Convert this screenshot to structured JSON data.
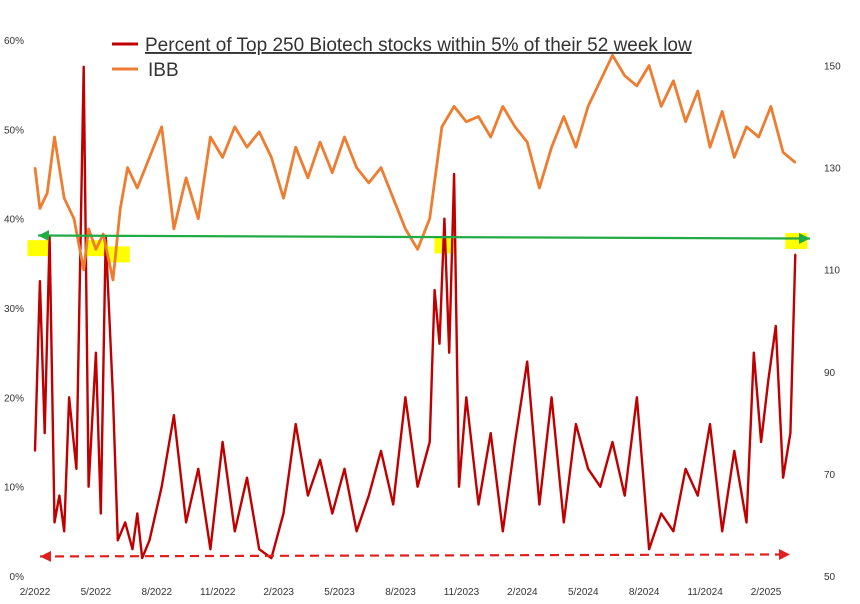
{
  "chart_data": {
    "type": "line",
    "title": "",
    "xlabel": "",
    "ylabel": "",
    "y2label": "",
    "grid": false,
    "legend_position": "top-center",
    "x_tick_labels": [
      "2/2022",
      "5/2022",
      "8/2022",
      "11/2022",
      "2/2023",
      "5/2023",
      "8/2023",
      "11/2023",
      "2/2024",
      "5/2024",
      "8/2024",
      "11/2024",
      "2/2025"
    ],
    "y_left": {
      "range": [
        0,
        60
      ],
      "unit": "%",
      "tick_labels": [
        "0%",
        "10%",
        "20%",
        "30%",
        "40%",
        "50%",
        "60%"
      ]
    },
    "y_right": {
      "range": [
        50,
        155
      ],
      "tick_labels": [
        "50",
        "70",
        "90",
        "110",
        "130",
        "150"
      ]
    },
    "series": [
      {
        "name": "Percent of Top 250 Biotech stocks within 5% of their 52 week low",
        "axis": "left",
        "color": "#c00000",
        "x": [
          2022.08,
          2022.1,
          2022.12,
          2022.14,
          2022.16,
          2022.18,
          2022.2,
          2022.22,
          2022.25,
          2022.28,
          2022.3,
          2022.33,
          2022.35,
          2022.37,
          2022.4,
          2022.42,
          2022.45,
          2022.48,
          2022.5,
          2022.52,
          2022.55,
          2022.6,
          2022.65,
          2022.7,
          2022.75,
          2022.8,
          2022.85,
          2022.9,
          2022.95,
          2023.0,
          2023.05,
          2023.1,
          2023.15,
          2023.2,
          2023.25,
          2023.3,
          2023.35,
          2023.4,
          2023.45,
          2023.5,
          2023.55,
          2023.6,
          2023.65,
          2023.7,
          2023.72,
          2023.74,
          2023.76,
          2023.78,
          2023.8,
          2023.82,
          2023.85,
          2023.9,
          2023.95,
          2024.0,
          2024.05,
          2024.1,
          2024.15,
          2024.2,
          2024.25,
          2024.3,
          2024.35,
          2024.4,
          2024.45,
          2024.5,
          2024.55,
          2024.6,
          2024.65,
          2024.7,
          2024.75,
          2024.8,
          2024.85,
          2024.9,
          2024.95,
          2025.0,
          2025.03,
          2025.06,
          2025.09,
          2025.12,
          2025.15,
          2025.18,
          2025.2
        ],
        "values": [
          14,
          33,
          16,
          38,
          6,
          9,
          5,
          20,
          12,
          57,
          10,
          25,
          7,
          38,
          20,
          4,
          6,
          3,
          7,
          2,
          4,
          10,
          18,
          6,
          12,
          3,
          15,
          5,
          11,
          3,
          2,
          7,
          17,
          9,
          13,
          7,
          12,
          5,
          9,
          14,
          8,
          20,
          10,
          15,
          32,
          26,
          40,
          25,
          45,
          10,
          20,
          8,
          16,
          5,
          15,
          24,
          8,
          20,
          6,
          17,
          12,
          10,
          15,
          9,
          20,
          3,
          7,
          5,
          12,
          9,
          17,
          5,
          14,
          6,
          25,
          15,
          22,
          28,
          11,
          16,
          36
        ],
        "reference_line": {
          "value": 2.3,
          "style": "dashed",
          "color": "#e02020"
        }
      },
      {
        "name": "IBB",
        "axis": "right",
        "color": "#ed7d31",
        "x": [
          2022.08,
          2022.1,
          2022.13,
          2022.16,
          2022.2,
          2022.24,
          2022.28,
          2022.3,
          2022.33,
          2022.36,
          2022.4,
          2022.43,
          2022.46,
          2022.5,
          2022.55,
          2022.6,
          2022.65,
          2022.7,
          2022.75,
          2022.8,
          2022.85,
          2022.9,
          2022.95,
          2023.0,
          2023.05,
          2023.1,
          2023.15,
          2023.2,
          2023.25,
          2023.3,
          2023.35,
          2023.4,
          2023.45,
          2023.5,
          2023.55,
          2023.6,
          2023.65,
          2023.7,
          2023.75,
          2023.8,
          2023.85,
          2023.9,
          2023.95,
          2024.0,
          2024.05,
          2024.1,
          2024.15,
          2024.2,
          2024.25,
          2024.3,
          2024.35,
          2024.4,
          2024.45,
          2024.5,
          2024.55,
          2024.6,
          2024.65,
          2024.7,
          2024.75,
          2024.8,
          2024.85,
          2024.9,
          2024.95,
          2025.0,
          2025.05,
          2025.1,
          2025.15,
          2025.2
        ],
        "values": [
          130,
          122,
          125,
          136,
          124,
          120,
          110,
          118,
          114,
          117,
          108,
          122,
          130,
          126,
          132,
          138,
          118,
          128,
          120,
          136,
          132,
          138,
          134,
          137,
          132,
          124,
          134,
          128,
          135,
          129,
          136,
          130,
          127,
          130,
          124,
          118,
          114,
          120,
          138,
          142,
          139,
          140,
          136,
          142,
          138,
          135,
          126,
          134,
          140,
          134,
          142,
          147,
          152,
          148,
          146,
          150,
          142,
          147,
          139,
          145,
          134,
          141,
          132,
          138,
          136,
          142,
          133,
          131
        ],
        "reference_line": {
          "value": 116.5,
          "style": "solid",
          "color": "#22aa44"
        }
      }
    ],
    "highlights_color": "#ffff00"
  }
}
